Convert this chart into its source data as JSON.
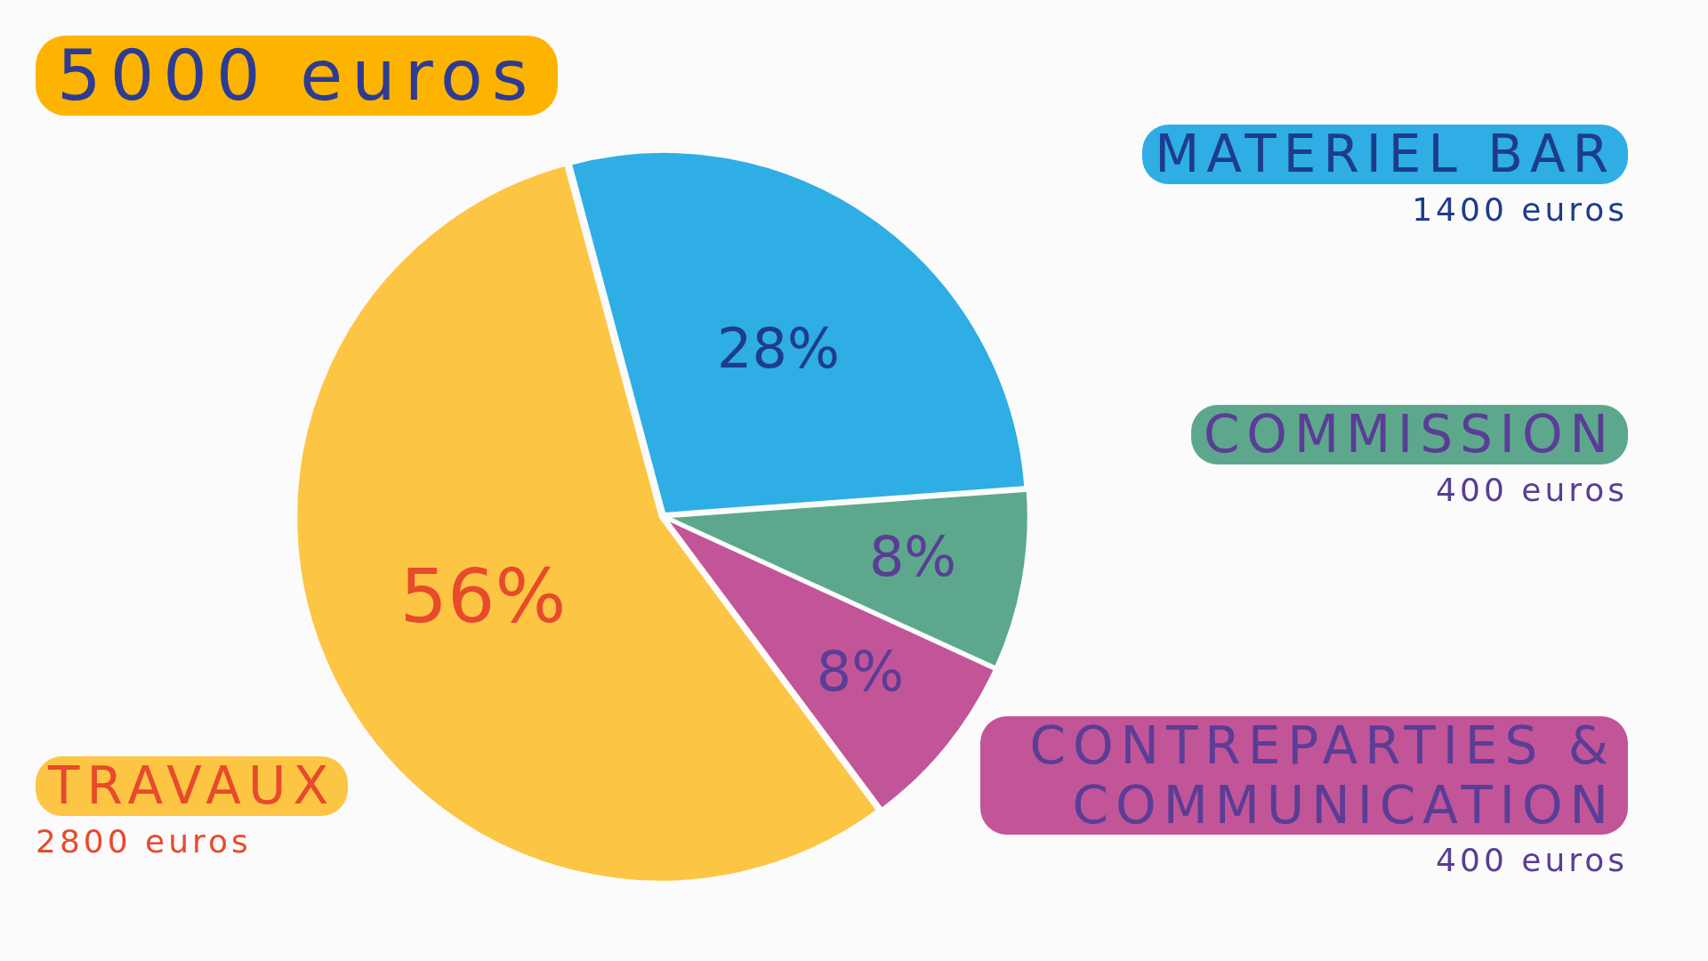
{
  "chart_data": {
    "type": "pie",
    "title": "5000 euros",
    "categories": [
      "MATERIEL BAR",
      "COMMISSION",
      "CONTREPARTIES & COMMUNICATION",
      "TRAVAUX"
    ],
    "values": [
      28,
      8,
      8,
      56
    ],
    "value_labels": [
      "28%",
      "8%",
      "8%",
      "56%"
    ],
    "colors": [
      "#2eaee4",
      "#5da88c",
      "#c25598",
      "#fdc544"
    ],
    "annotations": [
      "1400 euros",
      "400 euros",
      "400 euros",
      "2800 euros"
    ],
    "legend": false
  }
}
